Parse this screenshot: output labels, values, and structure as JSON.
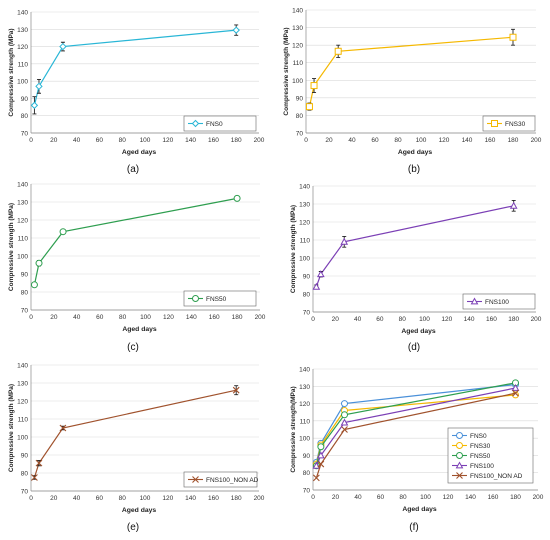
{
  "chart_data": [
    {
      "panel": "(a)",
      "type": "line",
      "ylabel": "Compressive strength (MPa)",
      "xlabel": "Aged days",
      "xlim": [
        0,
        200
      ],
      "xticks": [
        0,
        20,
        40,
        60,
        80,
        100,
        120,
        140,
        160,
        180,
        200
      ],
      "ylim": [
        70,
        140
      ],
      "yticks": [
        70,
        80,
        90,
        100,
        110,
        120,
        130,
        140
      ],
      "grid": "horizontal",
      "legend": {
        "placement": "bottom-right"
      },
      "series": [
        {
          "name": "FNS0",
          "color": "#29b6d6",
          "marker": "diamond",
          "x": [
            3,
            7,
            28,
            180
          ],
          "y": [
            86,
            97,
            120,
            129.5
          ],
          "err": [
            5,
            4,
            2.5,
            3
          ]
        }
      ]
    },
    {
      "panel": "(b)",
      "type": "line",
      "ylabel": "Compressive strength (MPa)",
      "xlabel": "Aged days",
      "xlim": [
        0,
        200
      ],
      "xticks": [
        0,
        20,
        40,
        60,
        80,
        100,
        120,
        140,
        160,
        180,
        200
      ],
      "ylim": [
        70,
        140
      ],
      "yticks": [
        70,
        80,
        90,
        100,
        110,
        120,
        130,
        140
      ],
      "grid": "horizontal",
      "legend": {
        "placement": "bottom-right"
      },
      "series": [
        {
          "name": "FNS30",
          "color": "#f5b800",
          "marker": "square",
          "x": [
            3,
            7,
            28,
            180
          ],
          "y": [
            85,
            97,
            116.5,
            124.5
          ],
          "err": [
            2,
            4,
            3.5,
            4.5
          ]
        }
      ]
    },
    {
      "panel": "(c)",
      "type": "line",
      "ylabel": "Compressive strength (MPa)",
      "xlabel": "Aged days",
      "xlim": [
        0,
        200
      ],
      "xticks": [
        0,
        20,
        40,
        60,
        80,
        100,
        120,
        140,
        160,
        180,
        200
      ],
      "ylim": [
        70,
        140
      ],
      "yticks": [
        70,
        80,
        90,
        100,
        110,
        120,
        130,
        140
      ],
      "grid": "horizontal",
      "legend": {
        "placement": "bottom-right"
      },
      "series": [
        {
          "name": "FNS50",
          "color": "#2e9e4f",
          "marker": "circle",
          "x": [
            3,
            7,
            28,
            180
          ],
          "y": [
            84,
            96,
            113.5,
            132
          ],
          "err": [
            1,
            1.5,
            1,
            1
          ]
        }
      ]
    },
    {
      "panel": "(d)",
      "type": "line",
      "ylabel": "Compressive strength (MPa)",
      "xlabel": "Aged days",
      "xlim": [
        0,
        200
      ],
      "xticks": [
        0,
        20,
        40,
        60,
        80,
        100,
        120,
        140,
        160,
        180,
        200
      ],
      "ylim": [
        70,
        140
      ],
      "yticks": [
        70,
        80,
        90,
        100,
        110,
        120,
        130,
        140
      ],
      "grid": "horizontal",
      "legend": {
        "placement": "bottom-right"
      },
      "series": [
        {
          "name": "FNS100",
          "color": "#7b3fb5",
          "marker": "triangle",
          "x": [
            3,
            7,
            28,
            180
          ],
          "y": [
            84,
            91,
            109,
            129
          ],
          "err": [
            1,
            1.5,
            3,
            3
          ]
        }
      ]
    },
    {
      "panel": "(e)",
      "type": "line",
      "ylabel": "Compressive strength (MPa)",
      "xlabel": "Aged days",
      "xlim": [
        0,
        200
      ],
      "xticks": [
        0,
        20,
        40,
        60,
        80,
        100,
        120,
        140,
        160,
        180,
        200
      ],
      "ylim": [
        70,
        140
      ],
      "yticks": [
        70,
        80,
        90,
        100,
        110,
        120,
        130,
        140
      ],
      "grid": "horizontal",
      "legend": {
        "placement": "bottom-right"
      },
      "series": [
        {
          "name": "FNS100_NON AD",
          "color": "#a0522d",
          "marker": "x",
          "x": [
            3,
            7,
            28,
            180
          ],
          "y": [
            77.5,
            85.5,
            105,
            126
          ],
          "err": [
            1,
            1.5,
            1,
            2.5
          ]
        }
      ]
    },
    {
      "panel": "(f)",
      "type": "line",
      "ylabel": "Compressive strength(MPa)",
      "xlabel": "Aged days",
      "xlim": [
        0,
        200
      ],
      "xticks": [
        0,
        20,
        40,
        60,
        80,
        100,
        120,
        140,
        160,
        180,
        200
      ],
      "ylim": [
        70,
        140
      ],
      "yticks": [
        70,
        80,
        90,
        100,
        110,
        120,
        130,
        140
      ],
      "grid": "horizontal",
      "legend": {
        "placement": "bottom-right"
      },
      "series": [
        {
          "name": "FNS0",
          "color": "#4a90d9",
          "marker": "circle",
          "x": [
            3,
            7,
            28,
            180
          ],
          "y": [
            86,
            97,
            120,
            131
          ]
        },
        {
          "name": "FNS30",
          "color": "#f5b800",
          "marker": "circle",
          "x": [
            3,
            7,
            28,
            180
          ],
          "y": [
            85,
            96,
            116,
            125
          ]
        },
        {
          "name": "FNS50",
          "color": "#2e9e4f",
          "marker": "circle",
          "x": [
            3,
            7,
            28,
            180
          ],
          "y": [
            84,
            95,
            113.5,
            132
          ]
        },
        {
          "name": "FNS100",
          "color": "#7b3fb5",
          "marker": "triangle",
          "x": [
            3,
            7,
            28,
            180
          ],
          "y": [
            84,
            90,
            109,
            129
          ]
        },
        {
          "name": "FNS100_NON AD",
          "color": "#a0522d",
          "marker": "x",
          "x": [
            3,
            7,
            28,
            180
          ],
          "y": [
            77,
            85,
            105,
            126
          ]
        }
      ]
    }
  ]
}
